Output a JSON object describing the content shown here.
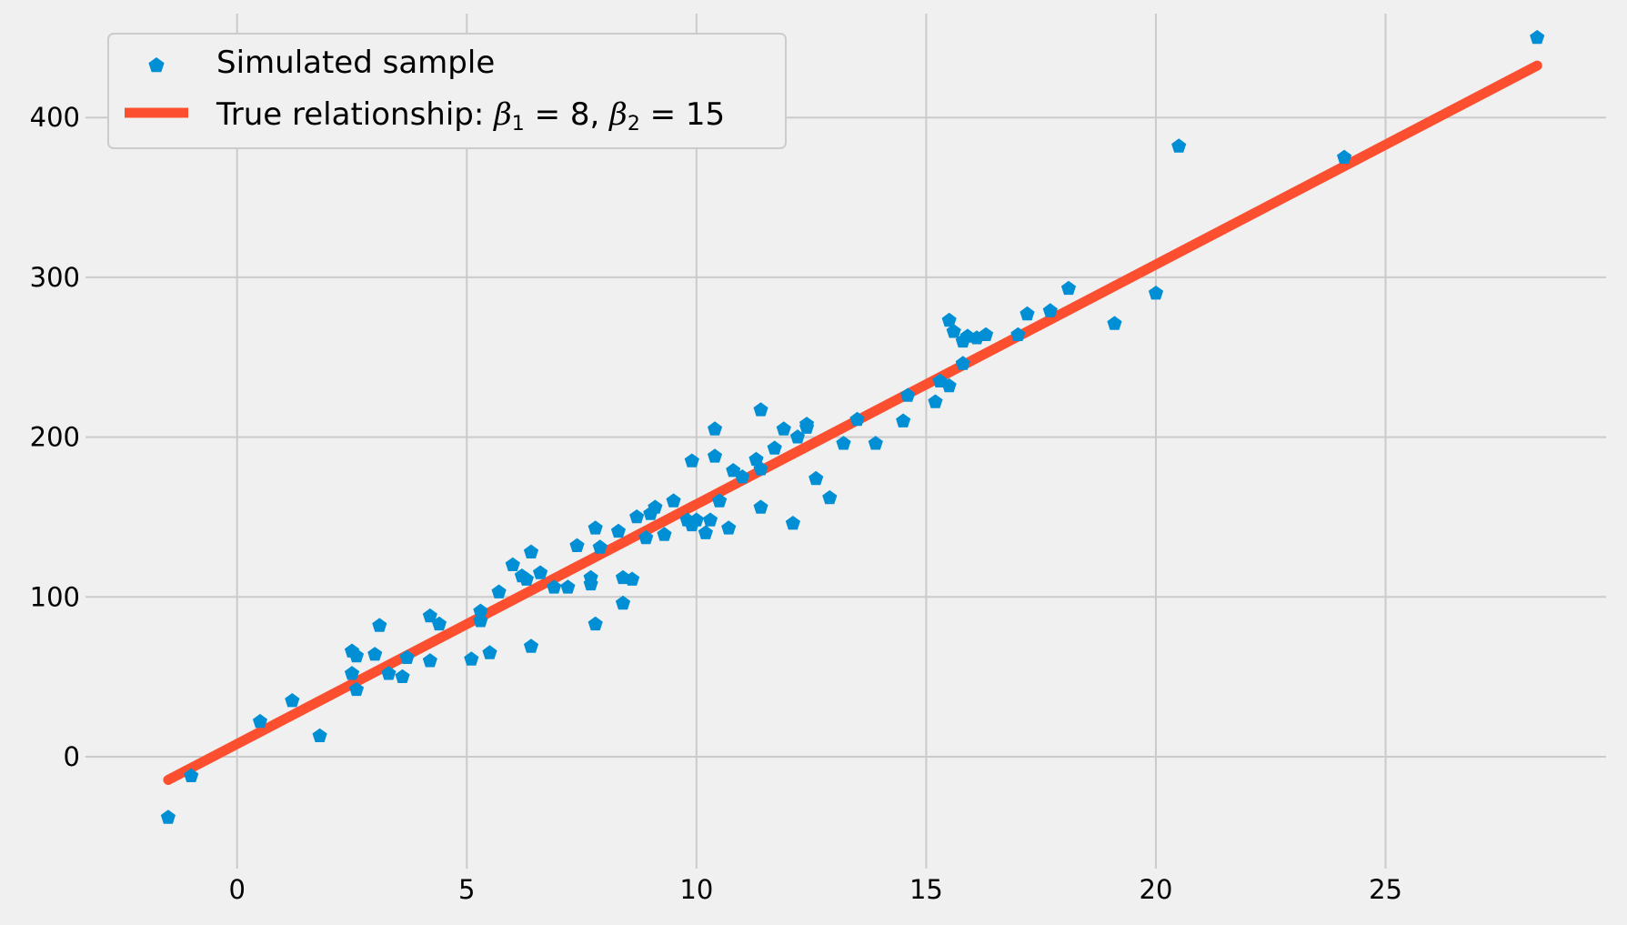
{
  "chart_data": {
    "type": "scatter",
    "title": "",
    "xlabel": "",
    "ylabel": "",
    "xlim": [
      -3.3,
      29.8
    ],
    "ylim": [
      -70,
      465
    ],
    "x_ticks": [
      0,
      5,
      10,
      15,
      20,
      25
    ],
    "y_ticks": [
      0,
      100,
      200,
      300,
      400
    ],
    "grid": true,
    "legend_position": "top-left",
    "colors": {
      "scatter": "#008fd5",
      "line": "#fc4f30",
      "background": "#f0f0f0",
      "grid": "#cbcbcb"
    },
    "legend": {
      "scatter_label": "Simulated sample",
      "line_label_prefix": "True relationship: ",
      "beta1_symbol": "β",
      "beta1_sub": "1",
      "beta1_text": " = 8, ",
      "beta2_symbol": "β",
      "beta2_sub": "2",
      "beta2_text": " = 15"
    },
    "series": [
      {
        "name": "Simulated sample",
        "type": "scatter",
        "points": [
          [
            -1.5,
            -38
          ],
          [
            -1.0,
            -12
          ],
          [
            0.5,
            22
          ],
          [
            1.2,
            35
          ],
          [
            1.8,
            13
          ],
          [
            2.5,
            52
          ],
          [
            2.5,
            66
          ],
          [
            2.6,
            42
          ],
          [
            2.6,
            63
          ],
          [
            3.0,
            64
          ],
          [
            3.1,
            82
          ],
          [
            3.3,
            52
          ],
          [
            3.6,
            50
          ],
          [
            3.7,
            62
          ],
          [
            4.2,
            60
          ],
          [
            4.2,
            88
          ],
          [
            4.4,
            83
          ],
          [
            5.1,
            61
          ],
          [
            5.3,
            85
          ],
          [
            5.3,
            91
          ],
          [
            5.5,
            65
          ],
          [
            5.7,
            103
          ],
          [
            6.0,
            120
          ],
          [
            6.2,
            113
          ],
          [
            6.3,
            111
          ],
          [
            6.4,
            128
          ],
          [
            6.4,
            69
          ],
          [
            6.6,
            115
          ],
          [
            6.9,
            106
          ],
          [
            7.2,
            106
          ],
          [
            7.4,
            132
          ],
          [
            7.7,
            112
          ],
          [
            7.7,
            108
          ],
          [
            7.8,
            143
          ],
          [
            7.8,
            83
          ],
          [
            7.9,
            131
          ],
          [
            8.3,
            141
          ],
          [
            8.4,
            96
          ],
          [
            8.4,
            112
          ],
          [
            8.6,
            111
          ],
          [
            8.7,
            150
          ],
          [
            8.9,
            137
          ],
          [
            9.0,
            152
          ],
          [
            9.1,
            156
          ],
          [
            9.3,
            139
          ],
          [
            9.5,
            160
          ],
          [
            9.8,
            148
          ],
          [
            9.9,
            185
          ],
          [
            9.9,
            145
          ],
          [
            10.0,
            148
          ],
          [
            10.2,
            140
          ],
          [
            10.3,
            148
          ],
          [
            10.4,
            188
          ],
          [
            10.4,
            205
          ],
          [
            10.5,
            160
          ],
          [
            10.7,
            143
          ],
          [
            10.8,
            179
          ],
          [
            11.0,
            175
          ],
          [
            11.3,
            186
          ],
          [
            11.4,
            217
          ],
          [
            11.4,
            180
          ],
          [
            11.4,
            156
          ],
          [
            11.7,
            193
          ],
          [
            11.9,
            205
          ],
          [
            12.1,
            146
          ],
          [
            12.2,
            200
          ],
          [
            12.4,
            206
          ],
          [
            12.4,
            208
          ],
          [
            12.6,
            174
          ],
          [
            12.9,
            162
          ],
          [
            13.2,
            196
          ],
          [
            13.5,
            211
          ],
          [
            13.9,
            196
          ],
          [
            14.5,
            210
          ],
          [
            14.6,
            226
          ],
          [
            15.2,
            222
          ],
          [
            15.3,
            235
          ],
          [
            15.5,
            273
          ],
          [
            15.5,
            232
          ],
          [
            15.6,
            266
          ],
          [
            15.8,
            246
          ],
          [
            15.8,
            260
          ],
          [
            15.9,
            263
          ],
          [
            16.1,
            262
          ],
          [
            16.3,
            264
          ],
          [
            17.0,
            264
          ],
          [
            17.2,
            277
          ],
          [
            17.7,
            279
          ],
          [
            18.1,
            293
          ],
          [
            19.1,
            271
          ],
          [
            20.0,
            290
          ],
          [
            20.5,
            382
          ],
          [
            24.1,
            375
          ],
          [
            28.3,
            450
          ]
        ]
      },
      {
        "name": "True relationship: β1 = 8, β2 = 15",
        "type": "line",
        "intercept": 8,
        "slope": 15,
        "x_range": [
          -1.5,
          28.3
        ]
      }
    ]
  }
}
